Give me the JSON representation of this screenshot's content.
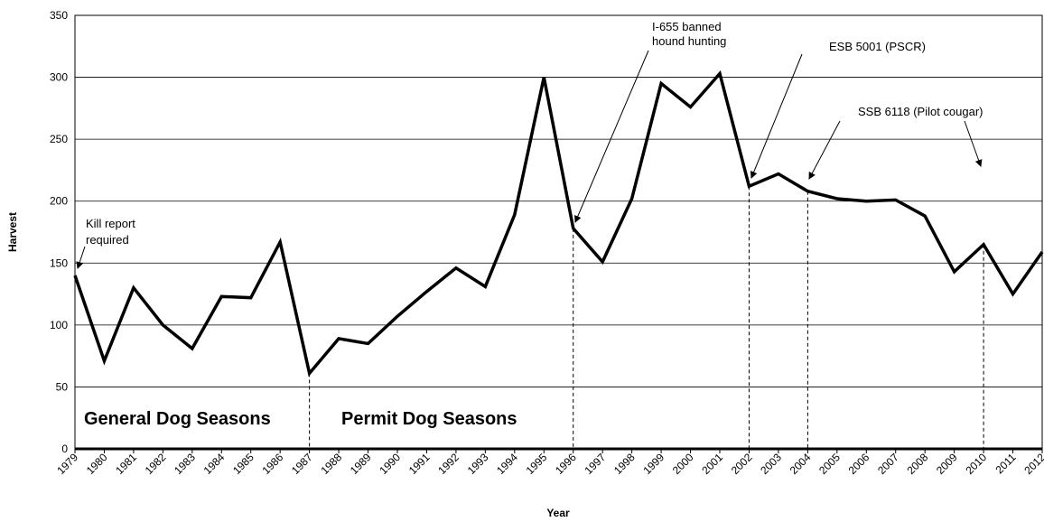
{
  "chart_data": {
    "type": "line",
    "x_label": "Year",
    "y_label": "Harvest",
    "categories": [
      "1979",
      "1980",
      "1981",
      "1982",
      "1983",
      "1984",
      "1985",
      "1986",
      "1987",
      "1988",
      "1989",
      "1990",
      "1991",
      "1992",
      "1993",
      "1994",
      "1995",
      "1996",
      "1997",
      "1998",
      "1999",
      "2000",
      "2001",
      "2002",
      "2003",
      "2004",
      "2005",
      "2006",
      "2007",
      "2008",
      "2009",
      "2010",
      "2011",
      "2012"
    ],
    "series": [
      {
        "name": "Harvest",
        "color": "#000000",
        "values": [
          140,
          71,
          130,
          100,
          81,
          123,
          122,
          167,
          61,
          89,
          85,
          107,
          127,
          146,
          131,
          189,
          300,
          178,
          151,
          202,
          295,
          276,
          303,
          212,
          222,
          208,
          202,
          200,
          201,
          188,
          143,
          165,
          125,
          159
        ]
      }
    ],
    "ylim": [
      0,
      350
    ],
    "yticks": [
      0,
      50,
      100,
      150,
      200,
      250,
      300,
      350
    ],
    "grid": true,
    "annotations": [
      [
        "Kill report",
        "required"
      ],
      [
        "I-655 banned",
        "hound hunting"
      ],
      [
        "ESB 5001 (PSCR)"
      ],
      [
        "SSB 6118 (Pilot cougar)"
      ],
      [
        "General Dog Seasons"
      ],
      [
        "Permit Dog Seasons"
      ]
    ]
  }
}
